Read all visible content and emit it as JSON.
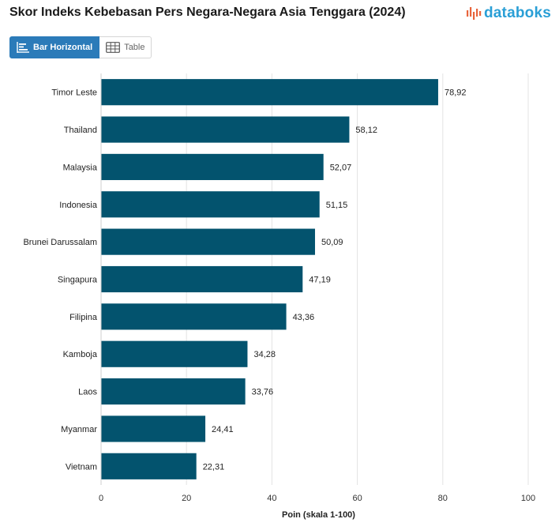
{
  "header": {
    "title": "Skor Indeks Kebebasan Pers Negara-Negara Asia Tenggara (2024)",
    "logo_text": "databoks"
  },
  "tabs": [
    {
      "label": "Bar Horizontal",
      "icon": "bar-horizontal-icon",
      "active": true
    },
    {
      "label": "Table",
      "icon": "table-icon",
      "active": false
    }
  ],
  "colors": {
    "bar": "#03536e",
    "accent": "#2b7bb9",
    "logo": "#2a9fd6",
    "logo_mark": "#e8643c"
  },
  "chart_data": {
    "type": "bar",
    "orientation": "horizontal",
    "title": "Skor Indeks Kebebasan Pers Negara-Negara Asia Tenggara (2024)",
    "xlabel": "Poin (skala 1-100)",
    "ylabel": "",
    "xlim": [
      0,
      100
    ],
    "xticks": [
      0,
      20,
      40,
      60,
      80,
      100
    ],
    "grid": true,
    "categories": [
      "Timor Leste",
      "Thailand",
      "Malaysia",
      "Indonesia",
      "Brunei Darussalam",
      "Singapura",
      "Filipina",
      "Kamboja",
      "Laos",
      "Myanmar",
      "Vietnam"
    ],
    "values": [
      78.92,
      58.12,
      52.07,
      51.15,
      50.09,
      47.19,
      43.36,
      34.28,
      33.76,
      24.41,
      22.31
    ],
    "value_labels": [
      "78,92",
      "58,12",
      "52,07",
      "51,15",
      "50,09",
      "47,19",
      "43,36",
      "34,28",
      "33,76",
      "24,41",
      "22,31"
    ]
  }
}
